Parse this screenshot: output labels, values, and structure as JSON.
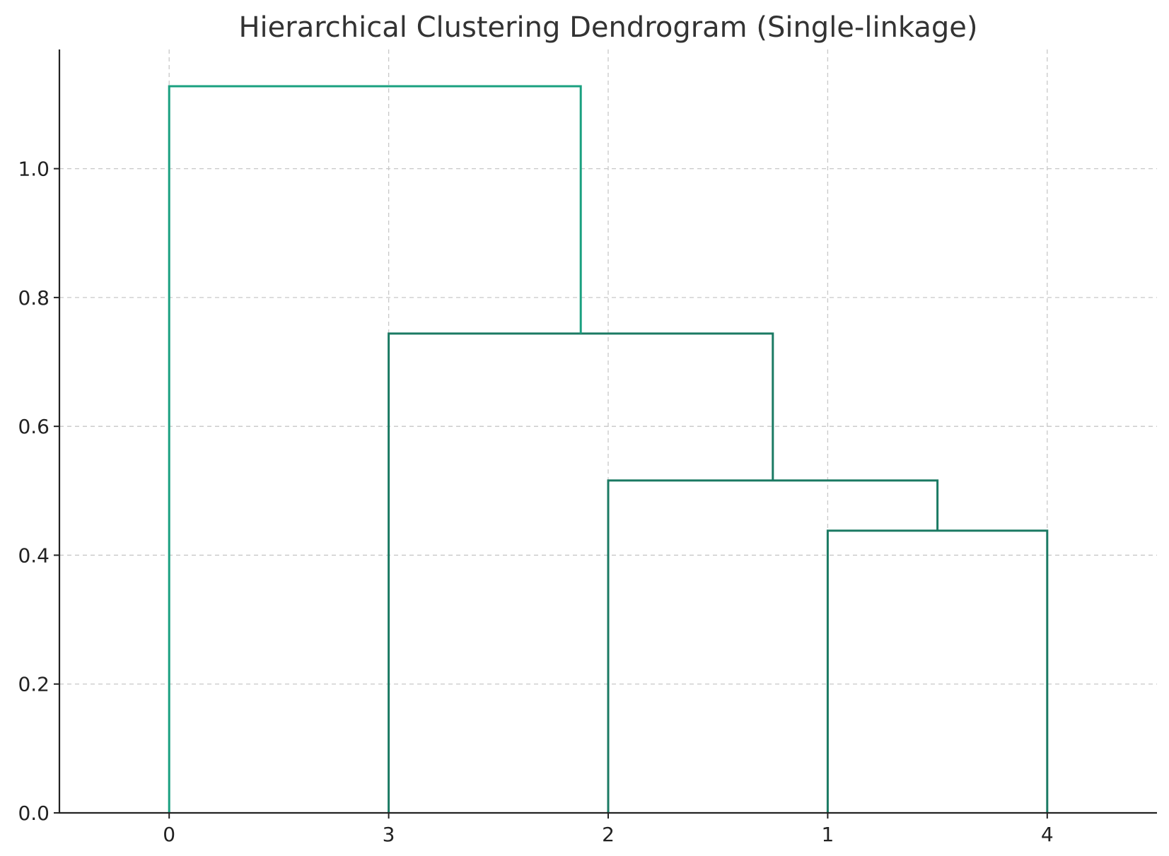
{
  "chart_data": {
    "type": "dendrogram",
    "title": "Hierarchical Clustering Dendrogram (Single-linkage)",
    "xlabel": "",
    "ylabel": "",
    "leaf_order": [
      "0",
      "3",
      "2",
      "1",
      "4"
    ],
    "yticks": [
      "0.0",
      "0.2",
      "0.4",
      "0.6",
      "0.8",
      "1.0"
    ],
    "ylim": [
      0,
      1.185
    ],
    "grid": true,
    "merges": [
      {
        "left": "1",
        "right": "4",
        "height": 0.438,
        "color": "#1b7a63"
      },
      {
        "left": "2",
        "right": "(1,4)",
        "height": 0.516,
        "color": "#1b7a63"
      },
      {
        "left": "3",
        "right": "(2,1,4)",
        "height": 0.744,
        "color": "#1b7a63"
      },
      {
        "left": "0",
        "right": "(3,2,1,4)",
        "height": 1.128,
        "color": "#1aa080"
      }
    ]
  }
}
